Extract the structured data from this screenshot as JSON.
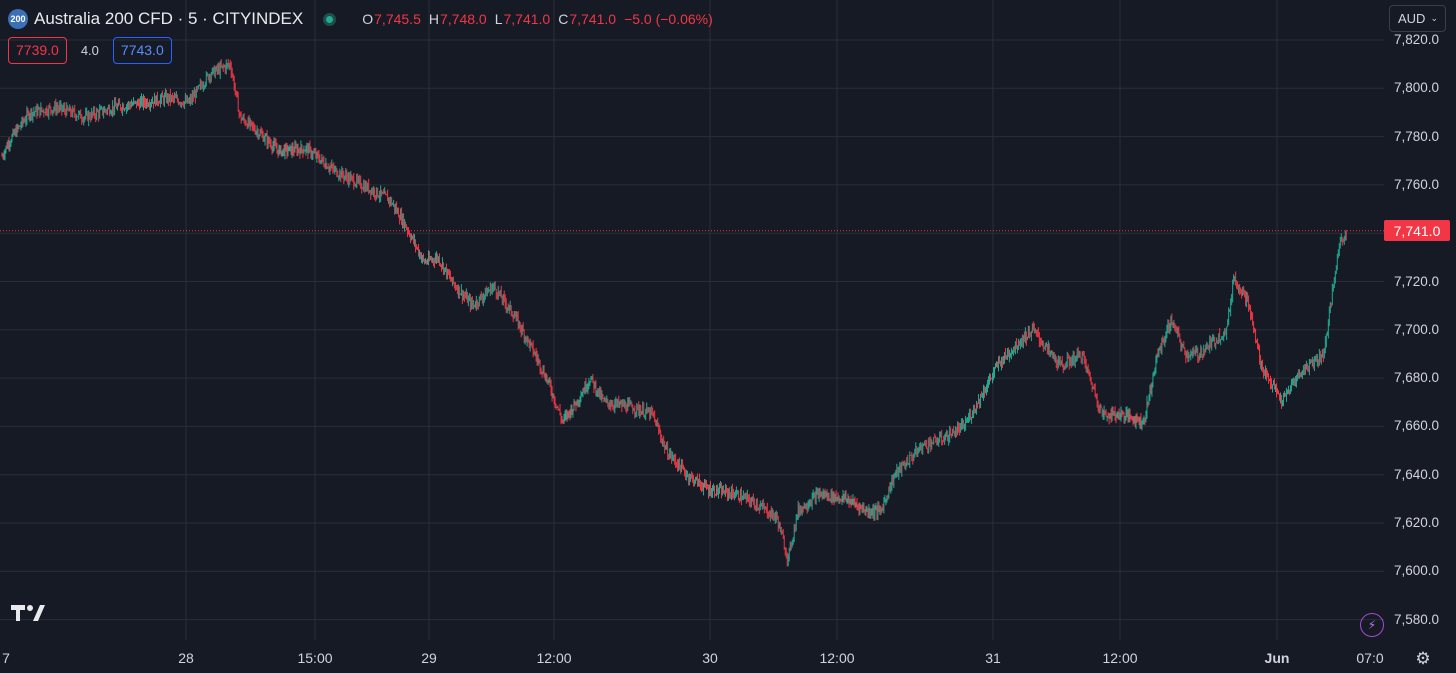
{
  "header": {
    "symbol_badge": "200",
    "symbol_title": "Australia 200 CFD · 5 · CITYINDEX",
    "ohlc": {
      "open_label": "O",
      "open": "7,745.5",
      "high_label": "H",
      "high": "7,748.0",
      "low_label": "L",
      "low": "7,741.0",
      "close_label": "C",
      "close": "7,741.0",
      "change": "−5.0 (−0.06%)"
    }
  },
  "quote": {
    "sell": "7739.0",
    "spread": "4.0",
    "buy": "7743.0"
  },
  "currency": {
    "label": "AUD",
    "chevron": "chevron-down-icon"
  },
  "last_price_label": "7,741.0",
  "colors": {
    "up": "#22ab94",
    "down": "#f23645",
    "background": "#161a25",
    "grid": "#2a2e39",
    "accent": "#2962ff"
  },
  "chart_data": {
    "type": "candlestick",
    "symbol": "Australia 200 CFD",
    "interval": "5",
    "y_ticks": [
      "7,820.0",
      "7,800.0",
      "7,780.0",
      "7,760.0",
      "7,740.0",
      "7,720.0",
      "7,700.0",
      "7,680.0",
      "7,660.0",
      "7,640.0",
      "7,620.0",
      "7,600.0",
      "7,580.0"
    ],
    "x_ticks": [
      "7",
      "28",
      "15:00",
      "29",
      "12:00",
      "30",
      "12:00",
      "31",
      "12:00",
      "Jun",
      "07:0"
    ],
    "ylim": [
      7576,
      7825
    ],
    "last_price": 7741.0,
    "price_path": [
      [
        0,
        7772
      ],
      [
        0.005,
        7778
      ],
      [
        0.02,
        7790
      ],
      [
        0.04,
        7792
      ],
      [
        0.06,
        7788
      ],
      [
        0.08,
        7792
      ],
      [
        0.1,
        7794
      ],
      [
        0.12,
        7796
      ],
      [
        0.135,
        7794
      ],
      [
        0.15,
        7806
      ],
      [
        0.165,
        7810
      ],
      [
        0.172,
        7788
      ],
      [
        0.185,
        7782
      ],
      [
        0.2,
        7774
      ],
      [
        0.22,
        7775
      ],
      [
        0.24,
        7766
      ],
      [
        0.26,
        7760
      ],
      [
        0.28,
        7754
      ],
      [
        0.29,
        7745
      ],
      [
        0.305,
        7728
      ],
      [
        0.315,
        7730
      ],
      [
        0.325,
        7720
      ],
      [
        0.34,
        7710
      ],
      [
        0.355,
        7718
      ],
      [
        0.37,
        7706
      ],
      [
        0.385,
        7690
      ],
      [
        0.395,
        7678
      ],
      [
        0.405,
        7662
      ],
      [
        0.415,
        7670
      ],
      [
        0.425,
        7680
      ],
      [
        0.435,
        7670
      ],
      [
        0.455,
        7668
      ],
      [
        0.47,
        7665
      ],
      [
        0.48,
        7650
      ],
      [
        0.495,
        7640
      ],
      [
        0.51,
        7634
      ],
      [
        0.53,
        7632
      ],
      [
        0.545,
        7628
      ],
      [
        0.56,
        7622
      ],
      [
        0.568,
        7605
      ],
      [
        0.575,
        7625
      ],
      [
        0.59,
        7632
      ],
      [
        0.61,
        7630
      ],
      [
        0.625,
        7625
      ],
      [
        0.635,
        7625
      ],
      [
        0.645,
        7640
      ],
      [
        0.665,
        7652
      ],
      [
        0.68,
        7655
      ],
      [
        0.695,
        7660
      ],
      [
        0.705,
        7670
      ],
      [
        0.72,
        7686
      ],
      [
        0.735,
        7695
      ],
      [
        0.745,
        7700
      ],
      [
        0.755,
        7692
      ],
      [
        0.765,
        7685
      ],
      [
        0.78,
        7690
      ],
      [
        0.795,
        7665
      ],
      [
        0.81,
        7665
      ],
      [
        0.825,
        7662
      ],
      [
        0.835,
        7690
      ],
      [
        0.845,
        7704
      ],
      [
        0.855,
        7690
      ],
      [
        0.865,
        7690
      ],
      [
        0.875,
        7695
      ],
      [
        0.885,
        7700
      ],
      [
        0.89,
        7722
      ],
      [
        0.9,
        7712
      ],
      [
        0.91,
        7685
      ],
      [
        0.925,
        7670
      ],
      [
        0.935,
        7680
      ],
      [
        0.945,
        7686
      ],
      [
        0.955,
        7690
      ],
      [
        0.96,
        7710
      ],
      [
        0.966,
        7735
      ],
      [
        0.972,
        7741
      ]
    ]
  }
}
